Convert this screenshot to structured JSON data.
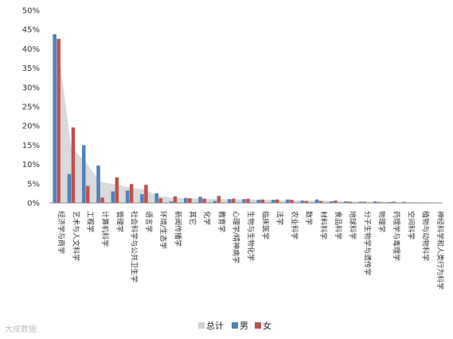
{
  "chart_data": {
    "type": "bar",
    "title": "",
    "xlabel": "",
    "ylabel": "",
    "ylim": [
      0,
      50
    ],
    "y_ticks": [
      "0%",
      "5%",
      "10%",
      "15%",
      "20%",
      "25%",
      "30%",
      "35%",
      "40%",
      "45%",
      "50%"
    ],
    "grid": false,
    "legend_position": "bottom",
    "categories": [
      "经济学与商学",
      "艺术与人文科学",
      "工程学",
      "计算机科学",
      "管理学",
      "社会科学与公共卫生学",
      "语言学",
      "环境/生态学",
      "新闻传播学",
      "其它",
      "化学",
      "教育学",
      "心理学/精神病学",
      "生物与生物化学",
      "临床医学",
      "法学",
      "农业科学",
      "数学",
      "材料科学",
      "食品科学",
      "地球科学",
      "分子生物学与遗传学",
      "物理学",
      "药理学与毒理学",
      "空间科学",
      "植物与动物科学",
      "神经科学和人类行为科学"
    ],
    "series": [
      {
        "name": "总计",
        "render": "area",
        "color": "#d3d3d3",
        "values": [
          43.0,
          14.5,
          10.5,
          5.5,
          4.8,
          4.0,
          3.5,
          1.8,
          1.3,
          1.2,
          1.1,
          1.0,
          0.9,
          0.9,
          0.8,
          0.8,
          0.7,
          0.6,
          0.6,
          0.5,
          0.4,
          0.3,
          0.3,
          0.25,
          0.2,
          0.15,
          0.1
        ]
      },
      {
        "name": "男",
        "color": "#4f81bd",
        "values": [
          43.8,
          7.5,
          15.0,
          9.7,
          3.0,
          3.2,
          2.3,
          2.5,
          0.4,
          1.3,
          1.6,
          0.5,
          1.0,
          1.0,
          0.8,
          0.8,
          0.9,
          0.6,
          0.9,
          0.4,
          0.4,
          0.3,
          0.4,
          0.2,
          0.3,
          0.1,
          0.1
        ]
      },
      {
        "name": "女",
        "color": "#c0504d",
        "values": [
          42.6,
          19.6,
          4.4,
          1.4,
          6.6,
          4.9,
          4.7,
          1.2,
          1.7,
          1.2,
          1.1,
          1.8,
          1.1,
          1.1,
          0.9,
          0.9,
          0.8,
          0.5,
          0.5,
          0.6,
          0.3,
          0.3,
          0.2,
          0.3,
          0.1,
          0.1,
          0.1
        ]
      }
    ]
  },
  "legend": {
    "total": "总计",
    "male": "男",
    "female": "女"
  },
  "watermark": "大成数据"
}
